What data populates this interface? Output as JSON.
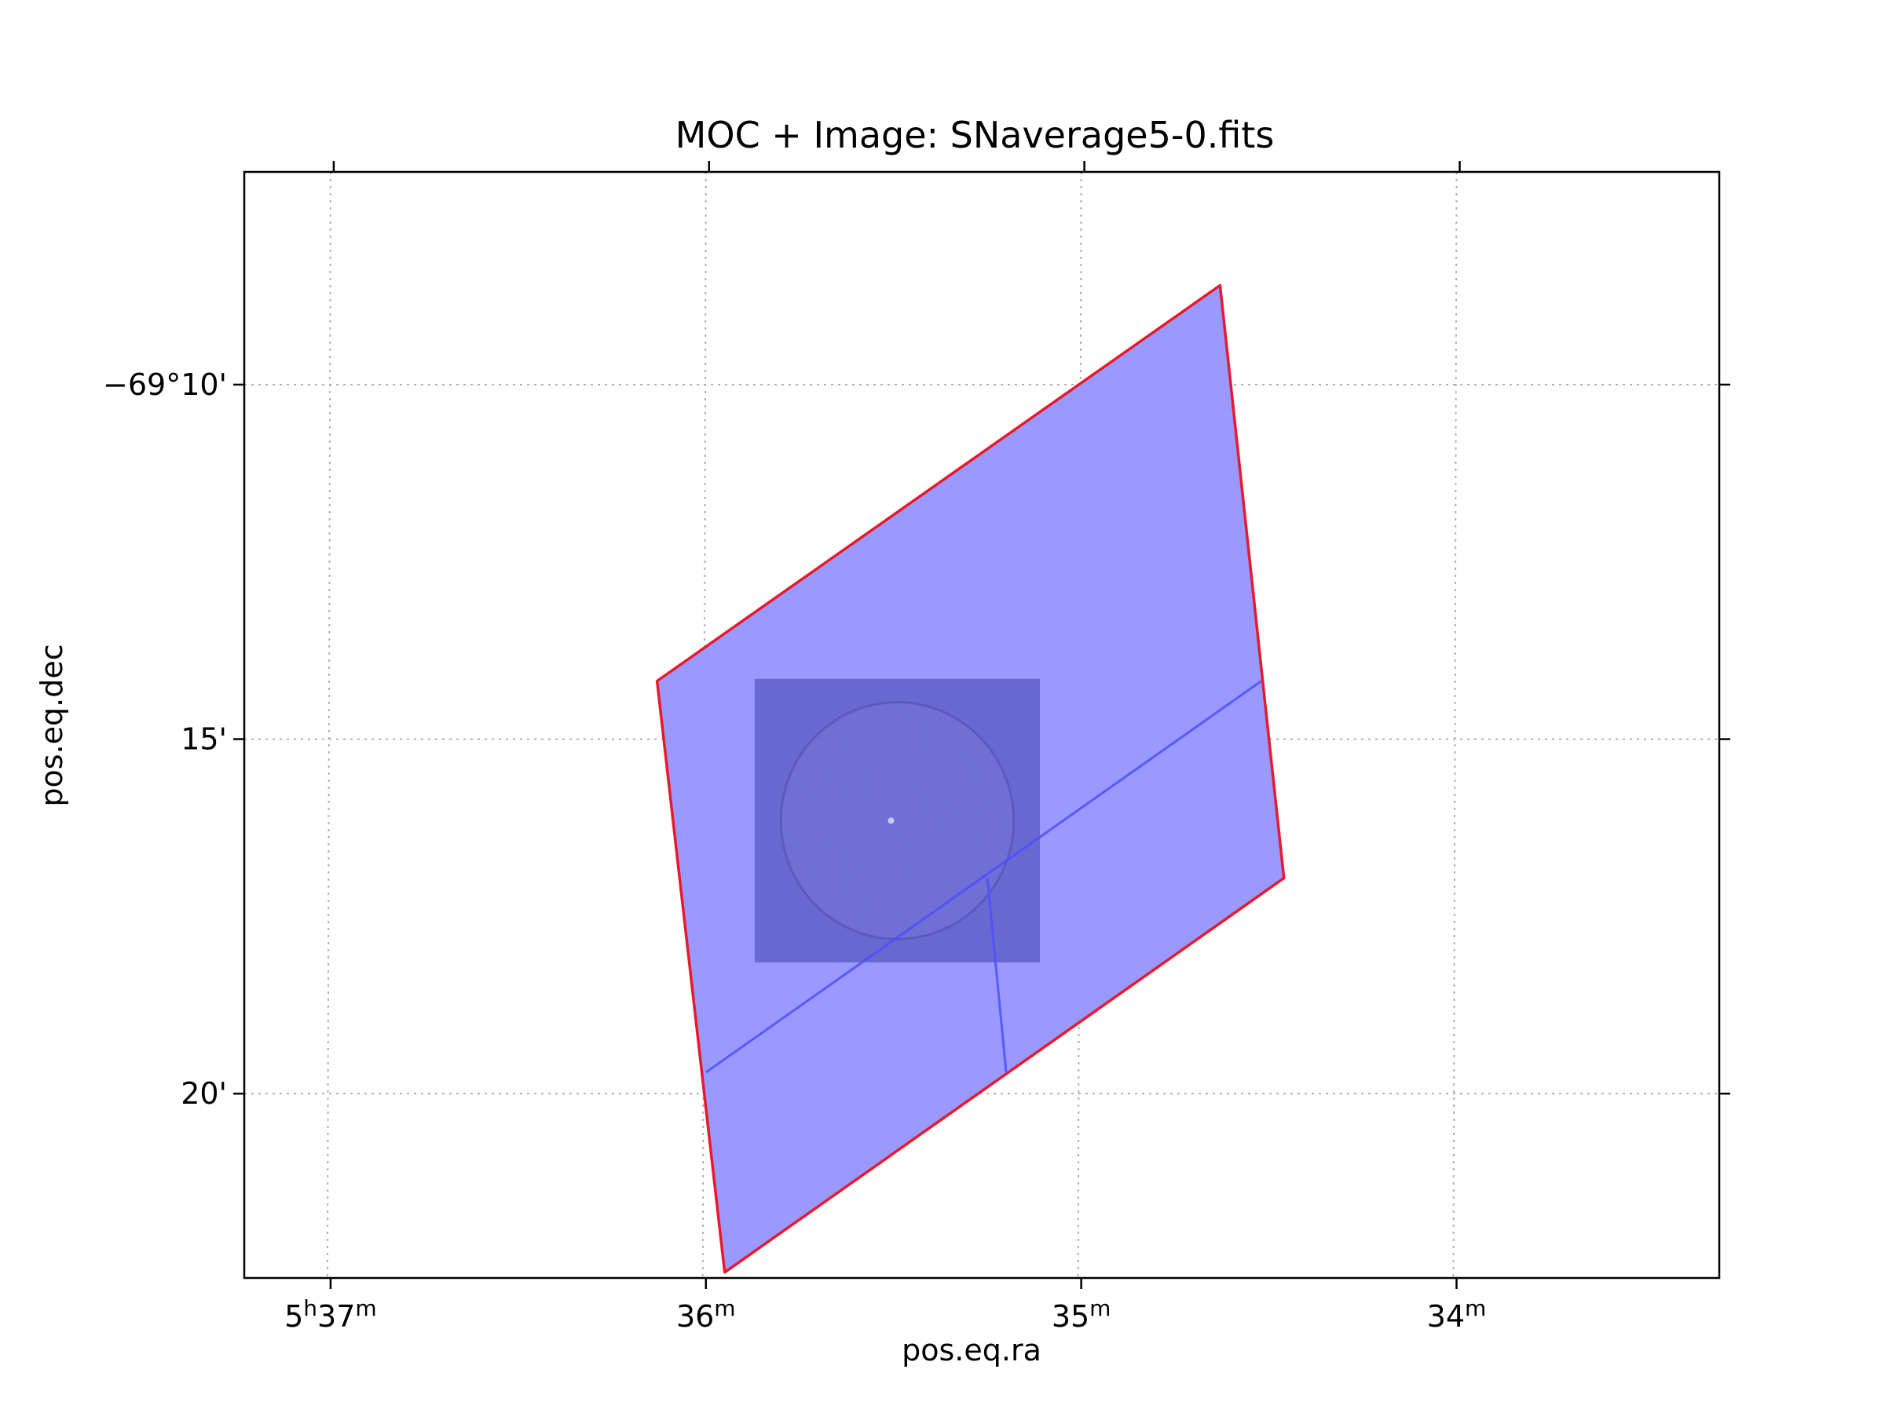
{
  "chart_data": {
    "type": "scatter",
    "title": "MOC + Image: SNaverage5-0.fits",
    "xlabel": "pos.eq.ra",
    "ylabel": "pos.eq.dec",
    "x_ticks": [
      {
        "ra_min": 337,
        "h": "5",
        "m": "37",
        "label": "5h37m"
      },
      {
        "ra_min": 336,
        "h": "",
        "m": "36",
        "label": "36m"
      },
      {
        "ra_min": 335,
        "h": "",
        "m": "35",
        "label": "35m"
      },
      {
        "ra_min": 334,
        "h": "",
        "m": "34",
        "label": "34m"
      }
    ],
    "y_ticks": [
      {
        "dec_arcmin": -10,
        "label": "−69°10'"
      },
      {
        "dec_arcmin": -15,
        "label": "15'"
      },
      {
        "dec_arcmin": -20,
        "label": "20'"
      }
    ],
    "xlim": [
      337.23,
      333.3
    ],
    "ylim": [
      -22.6,
      -7.0
    ],
    "grid": true,
    "moc_polygon": {
      "fill_color": "#9999ff",
      "edge_color": "#e8192c",
      "vertices": [
        {
          "ra": 336.13,
          "dec": -14.18
        },
        {
          "ra": 334.63,
          "dec": -8.6
        },
        {
          "ra": 334.46,
          "dec": -16.96
        },
        {
          "ra": 335.95,
          "dec": -22.52
        }
      ]
    },
    "inner_lines": {
      "color": "#4d4dff",
      "lines": [
        [
          {
            "ra": 336.0,
            "dec": -19.7
          },
          {
            "ra": 334.52,
            "dec": -14.18
          }
        ],
        [
          {
            "ra": 335.25,
            "dec": -16.96
          },
          {
            "ra": 335.2,
            "dec": -19.7
          }
        ]
      ]
    },
    "image": {
      "name": "SNaverage5-0.fits",
      "background_color": "#6868d1",
      "disk_color": "#6f6fd8",
      "ra_range": [
        335.87,
        335.11
      ],
      "dec_range": [
        -14.15,
        -18.15
      ],
      "disk_center": {
        "ra": 335.49,
        "dec": -16.15
      },
      "disk_radius_ra": 0.31,
      "disk_radius_dec": 1.67
    }
  }
}
